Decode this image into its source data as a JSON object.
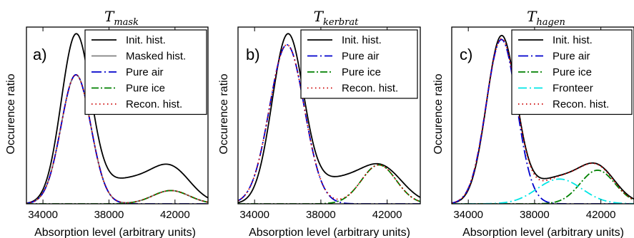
{
  "chart_data": [
    {
      "type": "line",
      "panel_label": "a)",
      "title_main": "T",
      "title_sub": "mask",
      "xlabel": "Absorption level (arbitrary units)",
      "ylabel": "Occurence ratio",
      "xlim": [
        33000,
        44000
      ],
      "ylim": [
        0,
        1.0
      ],
      "xticks": [
        "34000",
        "38000",
        "42000"
      ],
      "xtick_values": [
        34000,
        38000,
        42000
      ],
      "legend_position": "top-right",
      "series": [
        {
          "name": "Init. hist.",
          "color": "#000000",
          "dash": "solid",
          "components": [
            {
              "a": 0.94,
              "mu": 36000,
              "sigma": 900
            },
            {
              "a": 0.19,
              "mu": 41750,
              "sigma": 1200
            },
            {
              "a": 0.13,
              "mu": 39000,
              "sigma": 1600
            }
          ]
        },
        {
          "name": "Masked hist.",
          "color": "#808080",
          "dash": "solid",
          "components": [
            {
              "a": 0.73,
              "mu": 36000,
              "sigma": 900
            },
            {
              "a": 0.075,
              "mu": 41750,
              "sigma": 1100
            }
          ]
        },
        {
          "name": "Pure air",
          "color": "#0000cc",
          "dash": "blue",
          "components": [
            {
              "a": 0.73,
              "mu": 36000,
              "sigma": 900
            }
          ]
        },
        {
          "name": "Pure ice",
          "color": "#008000",
          "dash": "green",
          "components": [
            {
              "a": 0.075,
              "mu": 41750,
              "sigma": 1100
            }
          ]
        },
        {
          "name": "Recon. hist.",
          "color": "#cc0000",
          "dash": "dots",
          "components": [
            {
              "a": 0.73,
              "mu": 36000,
              "sigma": 900
            },
            {
              "a": 0.075,
              "mu": 41750,
              "sigma": 1100
            }
          ]
        }
      ]
    },
    {
      "type": "line",
      "panel_label": "b)",
      "title_main": "T",
      "title_sub": "kerbrat",
      "xlabel": "Absorption level (arbitrary units)",
      "ylabel": "Occurence ratio",
      "xlim": [
        33000,
        44000
      ],
      "ylim": [
        0,
        1.0
      ],
      "xticks": [
        "34000",
        "38000",
        "42000"
      ],
      "xtick_values": [
        34000,
        38000,
        42000
      ],
      "legend_position": "top-right",
      "series": [
        {
          "name": "Init. hist.",
          "color": "#000000",
          "dash": "solid",
          "components": [
            {
              "a": 0.94,
              "mu": 36000,
              "sigma": 950
            },
            {
              "a": 0.19,
              "mu": 41700,
              "sigma": 1250
            },
            {
              "a": 0.13,
              "mu": 39000,
              "sigma": 1600
            }
          ]
        },
        {
          "name": "Pure air",
          "color": "#0000cc",
          "dash": "blue",
          "components": [
            {
              "a": 0.9,
              "mu": 35950,
              "sigma": 1050
            }
          ]
        },
        {
          "name": "Pure ice",
          "color": "#008000",
          "dash": "green",
          "components": [
            {
              "a": 0.22,
              "mu": 41500,
              "sigma": 1050
            }
          ]
        },
        {
          "name": "Recon. hist.",
          "color": "#cc0000",
          "dash": "dots",
          "components": [
            {
              "a": 0.9,
              "mu": 35950,
              "sigma": 1050
            },
            {
              "a": 0.22,
              "mu": 41500,
              "sigma": 1050
            }
          ]
        }
      ]
    },
    {
      "type": "line",
      "panel_label": "c)",
      "title_main": "T",
      "title_sub": "hagen",
      "xlabel": "Absorption level (arbitrary units)",
      "ylabel": "Occurence ratio",
      "xlim": [
        33000,
        44000
      ],
      "ylim": [
        0,
        1.0
      ],
      "xticks": [
        "34000",
        "38000",
        "42000"
      ],
      "xtick_values": [
        34000,
        38000,
        42000
      ],
      "legend_position": "top-right",
      "series": [
        {
          "name": "Init. hist.",
          "color": "#000000",
          "dash": "solid",
          "components": [
            {
              "a": 0.94,
              "mu": 36000,
              "sigma": 900
            },
            {
              "a": 0.19,
              "mu": 41800,
              "sigma": 1100
            },
            {
              "a": 0.14,
              "mu": 39300,
              "sigma": 1500
            }
          ]
        },
        {
          "name": "Pure air",
          "color": "#0000cc",
          "dash": "blue",
          "components": [
            {
              "a": 0.93,
              "mu": 36000,
              "sigma": 920
            }
          ]
        },
        {
          "name": "Pure ice",
          "color": "#008000",
          "dash": "green",
          "components": [
            {
              "a": 0.19,
              "mu": 41800,
              "sigma": 1050
            }
          ]
        },
        {
          "name": "Fronteer",
          "color": "#00e5e5",
          "dash": "cyan",
          "components": [
            {
              "a": 0.14,
              "mu": 39500,
              "sigma": 1350
            }
          ]
        },
        {
          "name": "Recon. hist.",
          "color": "#cc0000",
          "dash": "dots",
          "components": [
            {
              "a": 0.93,
              "mu": 36000,
              "sigma": 920
            },
            {
              "a": 0.19,
              "mu": 41800,
              "sigma": 1050
            },
            {
              "a": 0.14,
              "mu": 39500,
              "sigma": 1350
            }
          ]
        }
      ]
    }
  ]
}
